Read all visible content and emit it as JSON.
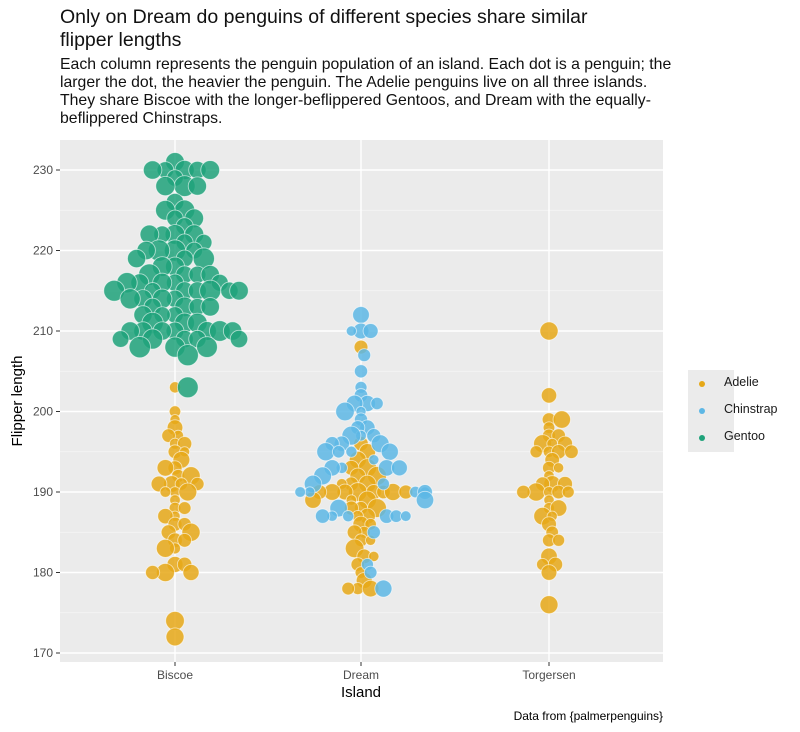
{
  "chart_data": {
    "type": "scatter",
    "subtype": "beeswarm",
    "title": "Only on Dream do penguins of different species share similar flipper lengths",
    "subtitle": "Each column represents the penguin population of an island. Each dot is a penguin; the larger the dot, the heavier the penguin. The Adelie penguins live on all three islands. They share Biscoe with the longer-beflippered Gentoos, and Dream with the equally-beflippered Chinstraps.",
    "xlabel": "Island",
    "ylabel": "Flipper length",
    "caption": "Data from {palmerpenguins}",
    "categories": [
      "Biscoe",
      "Dream",
      "Torgersen"
    ],
    "ylim": [
      169,
      232
    ],
    "yticks": [
      170,
      180,
      190,
      200,
      210,
      220,
      230
    ],
    "grid": true,
    "legend": {
      "position": "right",
      "entries": [
        {
          "name": "Adelie",
          "color": "#E6A817"
        },
        {
          "name": "Chinstrap",
          "color": "#5DB7E5"
        },
        {
          "name": "Gentoo",
          "color": "#1FA27A"
        }
      ]
    },
    "series": [
      {
        "name": "Gentoo",
        "color": "#1FA27A",
        "points": [
          {
            "island": "Biscoe",
            "values": [
              231,
              230,
              230,
              230,
              230,
              230,
              229,
              228,
              228,
              228,
              226,
              225,
              225,
              224,
              224,
              223,
              222,
              222,
              222,
              222,
              221,
              221,
              220,
              220,
              220,
              220,
              219,
              219,
              219,
              218,
              218,
              217,
              217,
              217,
              217,
              216,
              216,
              216,
              216,
              216,
              215,
              215,
              215,
              215,
              215,
              215,
              215,
              214,
              214,
              214,
              214,
              213,
              213,
              213,
              213,
              212,
              212,
              212,
              211,
              211,
              211,
              210,
              210,
              210,
              210,
              210,
              210,
              210,
              209,
              209,
              209,
              209,
              209,
              208,
              208,
              208,
              207,
              203
            ]
          }
        ]
      },
      {
        "name": "Chinstrap",
        "color": "#5DB7E5",
        "points": [
          {
            "island": "Dream",
            "values": [
              212,
              210,
              210,
              210,
              207,
              205,
              203,
              202,
              201,
              201,
              201,
              200,
              200,
              199,
              198,
              198,
              197,
              197,
              197,
              196,
              196,
              196,
              195,
              195,
              195,
              195,
              194,
              193,
              193,
              193,
              193,
              192,
              191,
              191,
              190,
              190,
              190,
              190,
              190,
              189,
              188,
              187,
              187,
              187,
              187,
              187,
              187,
              185,
              181,
              180,
              178
            ]
          }
        ]
      },
      {
        "name": "Adelie",
        "color": "#E6A817",
        "points": [
          {
            "island": "Biscoe",
            "values": [
              203,
              200,
              199,
              198,
              197,
              197,
              196,
              196,
              195,
              195,
              194,
              193,
              193,
              192,
              192,
              191,
              191,
              191,
              191,
              190,
              190,
              190,
              189,
              188,
              188,
              187,
              187,
              186,
              186,
              185,
              185,
              184,
              184,
              183,
              183,
              181,
              181,
              180,
              180,
              180,
              174,
              172
            ]
          },
          {
            "island": "Dream",
            "values": [
              208,
              196,
              195,
              194,
              193,
              193,
              192,
              192,
              191,
              191,
              191,
              190,
              190,
              190,
              190,
              190,
              190,
              190,
              190,
              189,
              189,
              189,
              188,
              188,
              188,
              187,
              187,
              186,
              186,
              185,
              185,
              184,
              184,
              183,
              182,
              182,
              181,
              180,
              179,
              178,
              178,
              178
            ]
          },
          {
            "island": "Torgersen",
            "values": [
              210,
              202,
              199,
              199,
              198,
              197,
              197,
              196,
              196,
              196,
              195,
              195,
              195,
              195,
              194,
              193,
              193,
              192,
              191,
              191,
              191,
              190,
              190,
              190,
              190,
              190,
              189,
              188,
              188,
              187,
              187,
              186,
              185,
              184,
              184,
              182,
              181,
              181,
              180,
              176
            ]
          }
        ]
      }
    ]
  },
  "legend_labels": [
    "Adelie",
    "Chinstrap",
    "Gentoo"
  ]
}
